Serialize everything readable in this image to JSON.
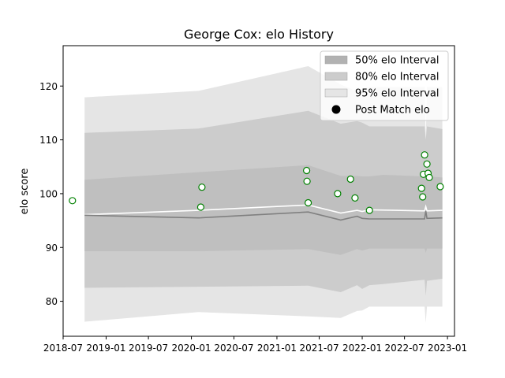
{
  "chart_data": {
    "type": "line",
    "title": "George Cox: elo History",
    "xlabel": "",
    "ylabel": "elo score",
    "xlim": [
      "2018-07-01",
      "2023-01-31"
    ],
    "ylim": [
      73.5,
      127.5
    ],
    "x_ticks": [
      "2018-07",
      "2019-01",
      "2019-07",
      "2020-01",
      "2020-07",
      "2021-01",
      "2021-07",
      "2022-01",
      "2022-07",
      "2023-01"
    ],
    "y_ticks": [
      80,
      90,
      100,
      110,
      120
    ],
    "grid": false,
    "legend_position": "top-right",
    "legend": [
      {
        "label": "50% elo Interval",
        "kind": "band",
        "color": "#b2b2b2"
      },
      {
        "label": "80% elo Interval",
        "kind": "band",
        "color": "#cccccc"
      },
      {
        "label": "95% elo Interval",
        "kind": "band",
        "color": "#e5e5e5"
      },
      {
        "label": "Post Match elo",
        "kind": "marker",
        "color": "#000000"
      }
    ],
    "band_dates": [
      "2018-10-01",
      "2020-02-01",
      "2021-05-15",
      "2021-10-01",
      "2021-12-10",
      "2022-01-01",
      "2022-02-01",
      "2022-04-01",
      "2022-09-25",
      "2022-09-30",
      "2022-10-05",
      "2022-12-10"
    ],
    "bands": [
      {
        "name": "95% elo Interval",
        "color": "#e5e5e5",
        "upper": [
          117.9,
          119.1,
          123.7,
          120.3,
          119.0,
          119.5,
          119.8,
          119.8,
          119.8,
          110.0,
          119.8,
          119.8
        ],
        "lower": [
          76.2,
          78.0,
          77.2,
          76.9,
          78.2,
          78.3,
          79.0,
          79.0,
          79.0,
          76.0,
          79.0,
          79.0
        ]
      },
      {
        "name": "80% elo Interval",
        "color": "#cccccc",
        "upper": [
          111.3,
          112.1,
          115.4,
          113.0,
          113.5,
          113.2,
          112.5,
          112.5,
          112.5,
          110.0,
          112.5,
          112.0
        ],
        "lower": [
          82.5,
          82.7,
          82.9,
          81.7,
          83.0,
          82.3,
          83.0,
          83.2,
          84.0,
          81.0,
          83.8,
          84.2
        ]
      },
      {
        "name": "50% elo Interval",
        "color": "#bfbfbf",
        "upper": [
          102.6,
          104.0,
          105.3,
          103.3,
          103.3,
          103.2,
          103.2,
          103.5,
          103.2,
          103.0,
          103.2,
          103.0
        ],
        "lower": [
          89.3,
          89.3,
          89.7,
          88.6,
          89.7,
          89.4,
          89.8,
          89.8,
          89.8,
          89.0,
          89.8,
          89.8
        ]
      }
    ],
    "series": [
      {
        "name": "",
        "color": "#ffffff",
        "x": [
          "2018-10-01",
          "2020-02-01",
          "2021-05-15",
          "2021-10-01",
          "2021-12-10",
          "2022-01-01",
          "2022-02-01",
          "2022-09-25",
          "2022-09-30",
          "2022-10-05",
          "2022-12-10"
        ],
        "y": [
          96.1,
          96.9,
          97.9,
          96.4,
          96.9,
          96.7,
          97.0,
          96.8,
          97.6,
          96.8,
          96.9
        ]
      },
      {
        "name": "",
        "color": "#808080",
        "x": [
          "2018-10-01",
          "2020-02-01",
          "2021-05-15",
          "2021-10-01",
          "2021-12-10",
          "2022-01-01",
          "2022-02-01",
          "2022-09-25",
          "2022-09-30",
          "2022-10-05",
          "2022-12-10"
        ],
        "y": [
          96.0,
          95.5,
          96.6,
          95.1,
          95.8,
          95.4,
          95.3,
          95.3,
          96.8,
          95.4,
          95.5
        ]
      }
    ],
    "points": {
      "name": "Post Match elo",
      "edge_color": "#008000",
      "face_color": "#ffffff",
      "x": [
        "2018-08-10",
        "2020-02-10",
        "2020-02-15",
        "2021-05-08",
        "2021-05-10",
        "2021-05-15",
        "2021-09-18",
        "2021-11-12",
        "2021-12-01",
        "2022-02-01",
        "2022-09-12",
        "2022-09-17",
        "2022-09-20",
        "2022-09-25",
        "2022-10-05",
        "2022-10-10",
        "2022-10-15",
        "2022-12-01"
      ],
      "y": [
        98.7,
        97.5,
        101.2,
        104.3,
        102.3,
        98.3,
        100.0,
        102.7,
        99.2,
        96.9,
        101.0,
        99.4,
        103.6,
        107.2,
        105.5,
        103.8,
        103.0,
        101.3
      ]
    }
  }
}
